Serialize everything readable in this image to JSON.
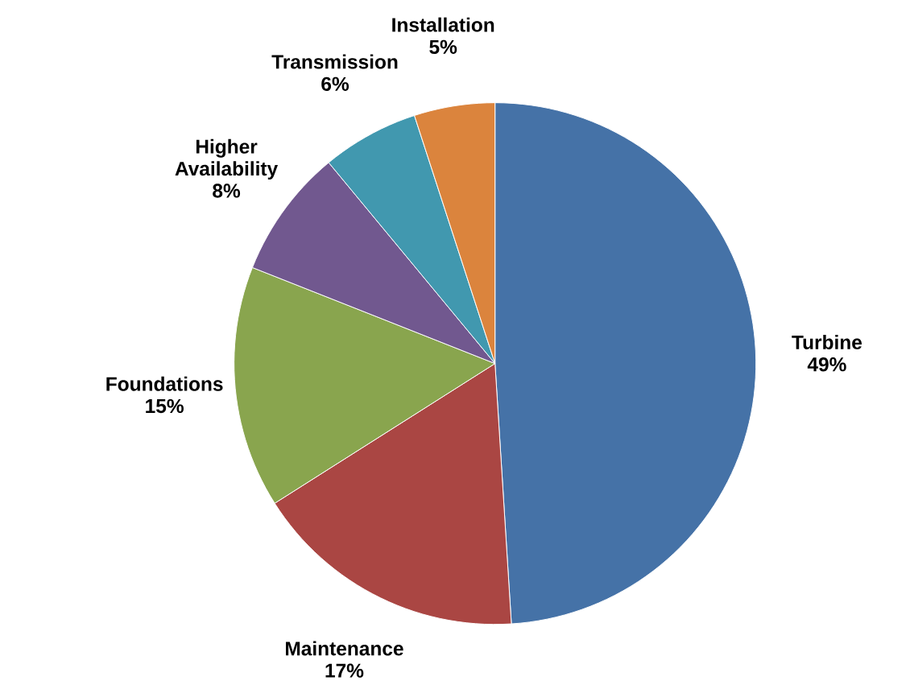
{
  "chart_data": {
    "type": "pie",
    "categories": [
      "Turbine",
      "Maintenance",
      "Foundations",
      "Higher Availability",
      "Transmission",
      "Installation"
    ],
    "values": [
      49,
      17,
      15,
      8,
      6,
      5
    ],
    "value_labels": [
      "49%",
      "17%",
      "15%",
      "8%",
      "6%",
      "5%"
    ],
    "colors": [
      "#4572a7",
      "#aa4643",
      "#89a54e",
      "#71588f",
      "#4198af",
      "#db843d"
    ]
  }
}
